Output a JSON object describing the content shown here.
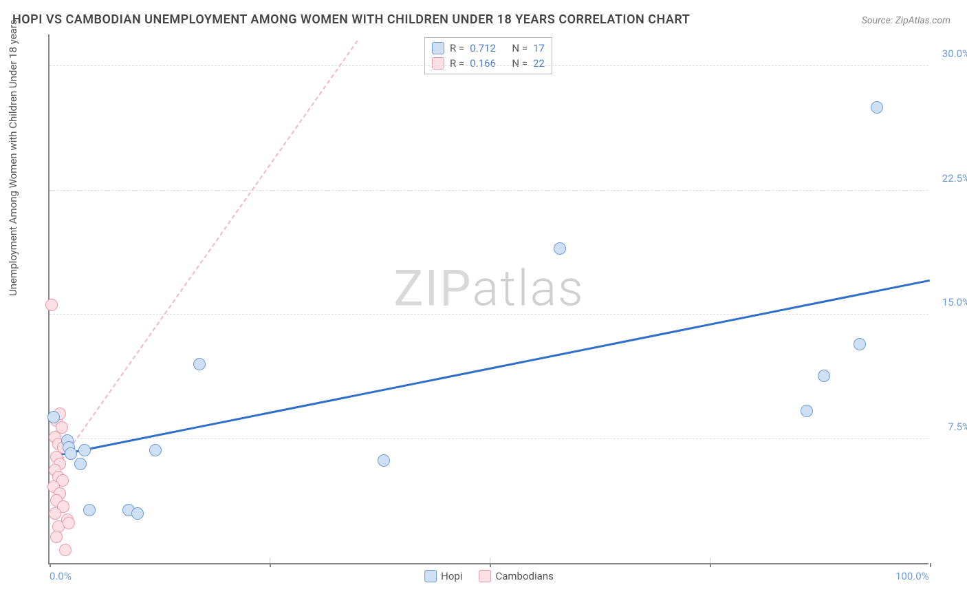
{
  "title": "HOPI VS CAMBODIAN UNEMPLOYMENT AMONG WOMEN WITH CHILDREN UNDER 18 YEARS CORRELATION CHART",
  "source": "Source: ZipAtlas.com",
  "watermark_bold": "ZIP",
  "watermark_light": "atlas",
  "y_axis_label": "Unemployment Among Women with Children Under 18 years",
  "chart": {
    "type": "scatter",
    "xlim": [
      0,
      100
    ],
    "ylim": [
      0,
      32
    ],
    "x_ticks": [
      0,
      25,
      50,
      75,
      100
    ],
    "y_gridlines": [
      7.5,
      15.0,
      22.5,
      30.0
    ],
    "x_tick_labels": {
      "0": "0.0%",
      "100": "100.0%"
    },
    "y_tick_labels": {
      "7.5": "7.5%",
      "15.0": "15.0%",
      "22.5": "22.5%",
      "30.0": "30.0%"
    },
    "background_color": "#ffffff",
    "grid_color": "#dddddd",
    "axis_color": "#888888",
    "tick_label_color": "#6b9bd8",
    "point_radius": 9
  },
  "series": {
    "hopi": {
      "label": "Hopi",
      "R": "0.712",
      "N": "17",
      "fill": "#cfe0f5",
      "stroke": "#6b9bd8",
      "trend_color": "#2f6fc7",
      "trend_style": "solid",
      "trend": {
        "x1": 0.5,
        "y1": 6.4,
        "x2": 100,
        "y2": 17.0
      },
      "points": [
        {
          "x": 0.5,
          "y": 8.8
        },
        {
          "x": 2.0,
          "y": 7.4
        },
        {
          "x": 2.2,
          "y": 7.0
        },
        {
          "x": 2.4,
          "y": 6.6
        },
        {
          "x": 3.5,
          "y": 6.0
        },
        {
          "x": 4.0,
          "y": 6.8
        },
        {
          "x": 4.5,
          "y": 3.2
        },
        {
          "x": 9.0,
          "y": 3.2
        },
        {
          "x": 10.0,
          "y": 3.0
        },
        {
          "x": 12.0,
          "y": 6.8
        },
        {
          "x": 17.0,
          "y": 12.0
        },
        {
          "x": 38.0,
          "y": 6.2
        },
        {
          "x": 58.0,
          "y": 19.0
        },
        {
          "x": 86.0,
          "y": 9.2
        },
        {
          "x": 88.0,
          "y": 11.3
        },
        {
          "x": 92.0,
          "y": 13.2
        },
        {
          "x": 94.0,
          "y": 27.5
        }
      ]
    },
    "cambodians": {
      "label": "Cambodians",
      "R": "0.166",
      "N": "22",
      "fill": "#fce0e6",
      "stroke": "#e89aab",
      "trend_color": "#f0b8c4",
      "trend_style": "dashed",
      "trend": {
        "x1": 0.5,
        "y1": 5.5,
        "x2": 35,
        "y2": 31.5
      },
      "points": [
        {
          "x": 0.2,
          "y": 15.6
        },
        {
          "x": 0.8,
          "y": 8.6
        },
        {
          "x": 1.2,
          "y": 9.0
        },
        {
          "x": 1.4,
          "y": 8.2
        },
        {
          "x": 0.6,
          "y": 7.6
        },
        {
          "x": 1.0,
          "y": 7.2
        },
        {
          "x": 1.6,
          "y": 7.0
        },
        {
          "x": 0.8,
          "y": 6.4
        },
        {
          "x": 1.2,
          "y": 6.0
        },
        {
          "x": 0.6,
          "y": 5.6
        },
        {
          "x": 1.0,
          "y": 5.2
        },
        {
          "x": 1.5,
          "y": 5.0
        },
        {
          "x": 0.5,
          "y": 4.6
        },
        {
          "x": 1.2,
          "y": 4.2
        },
        {
          "x": 0.8,
          "y": 3.8
        },
        {
          "x": 1.6,
          "y": 3.4
        },
        {
          "x": 0.6,
          "y": 3.0
        },
        {
          "x": 2.0,
          "y": 2.6
        },
        {
          "x": 1.0,
          "y": 2.2
        },
        {
          "x": 2.2,
          "y": 2.4
        },
        {
          "x": 0.8,
          "y": 1.6
        },
        {
          "x": 1.8,
          "y": 0.8
        }
      ]
    }
  },
  "legend_corr": {
    "r_label": "R =",
    "n_label": "N ="
  }
}
